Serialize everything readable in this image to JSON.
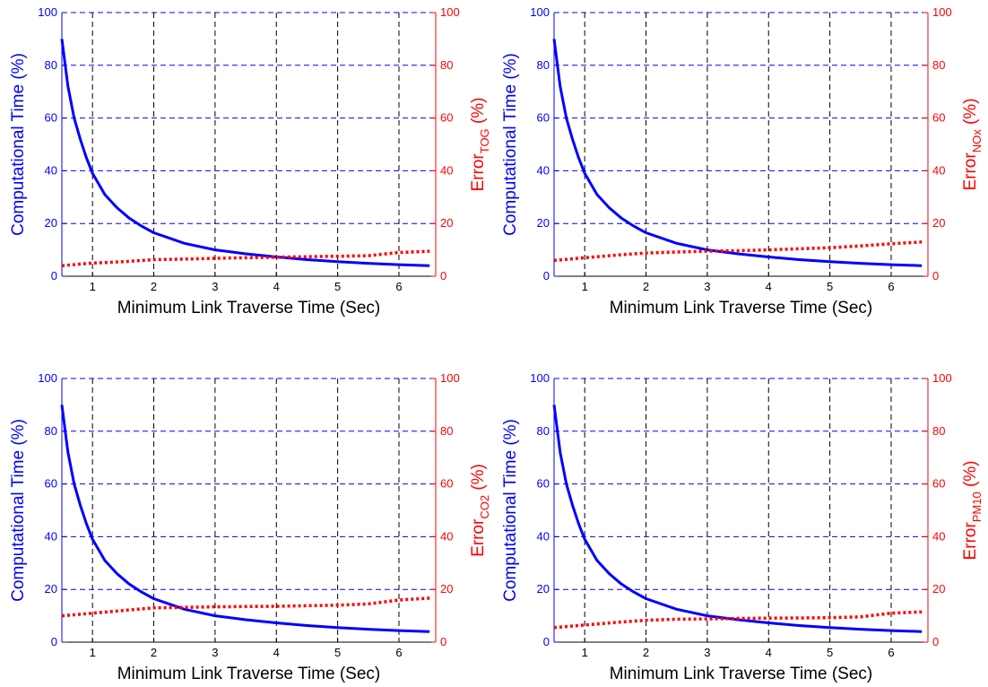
{
  "colors": {
    "left_series": "#0000ff",
    "right_series": "#ff0000",
    "vertical_grid": "#000000",
    "horizontal_grid": "#0000ff"
  },
  "chart_data": [
    {
      "type": "line",
      "xlabel": "Minimum Link Traverse Time (Sec)",
      "ylabel_left": "Computational Time (%)",
      "ylabel_right": {
        "main": "Error",
        "sub": "TOG",
        "suffix": " (%)"
      },
      "xlim": [
        0.5,
        6.6
      ],
      "ylim_left": [
        0,
        100
      ],
      "ylim_right": [
        0,
        100
      ],
      "xticks": [
        1,
        2,
        3,
        4,
        5,
        6
      ],
      "yticks": [
        0,
        20,
        40,
        60,
        80,
        100
      ],
      "grid": "dashed",
      "series": [
        {
          "axis": "left",
          "style": "solid",
          "x": [
            0.5,
            0.6,
            0.7,
            0.8,
            0.9,
            1.0,
            1.2,
            1.4,
            1.6,
            1.8,
            2.0,
            2.5,
            3.0,
            3.5,
            4.0,
            4.5,
            5.0,
            5.5,
            6.0,
            6.5
          ],
          "values": [
            90,
            72,
            60,
            52,
            45,
            39,
            31,
            26,
            22,
            19,
            16.5,
            12.5,
            10,
            8.5,
            7.3,
            6.3,
            5.5,
            4.9,
            4.4,
            4
          ]
        },
        {
          "axis": "right",
          "style": "dotted",
          "x": [
            0.5,
            1.0,
            1.5,
            2.0,
            2.5,
            3.0,
            3.5,
            4.0,
            4.5,
            5.0,
            5.5,
            6.0,
            6.5
          ],
          "values": [
            4,
            5,
            5.5,
            6.3,
            6.5,
            6.8,
            7,
            7.2,
            7.4,
            7.6,
            7.8,
            9,
            9.5
          ]
        }
      ]
    },
    {
      "type": "line",
      "xlabel": "Minimum Link Traverse Time (Sec)",
      "ylabel_left": "Computational Time (%)",
      "ylabel_right": {
        "main": "Error",
        "sub": "NOx",
        "suffix": " (%)"
      },
      "xlim": [
        0.5,
        6.6
      ],
      "ylim_left": [
        0,
        100
      ],
      "ylim_right": [
        0,
        100
      ],
      "xticks": [
        1,
        2,
        3,
        4,
        5,
        6
      ],
      "yticks": [
        0,
        20,
        40,
        60,
        80,
        100
      ],
      "grid": "dashed",
      "series": [
        {
          "axis": "left",
          "style": "solid",
          "x": [
            0.5,
            0.6,
            0.7,
            0.8,
            0.9,
            1.0,
            1.2,
            1.4,
            1.6,
            1.8,
            2.0,
            2.5,
            3.0,
            3.5,
            4.0,
            4.5,
            5.0,
            5.5,
            6.0,
            6.5
          ],
          "values": [
            90,
            72,
            60,
            52,
            45,
            39,
            31,
            26,
            22,
            19,
            16.5,
            12.5,
            10,
            8.5,
            7.3,
            6.3,
            5.5,
            4.9,
            4.4,
            4
          ]
        },
        {
          "axis": "right",
          "style": "dotted",
          "x": [
            0.5,
            1.0,
            1.5,
            2.0,
            2.5,
            3.0,
            3.5,
            4.0,
            4.5,
            5.0,
            5.5,
            6.0,
            6.5
          ],
          "values": [
            6,
            7,
            8,
            8.8,
            9.2,
            9.5,
            9.7,
            10,
            10.4,
            10.8,
            11.5,
            12.3,
            13
          ]
        }
      ]
    },
    {
      "type": "line",
      "xlabel": "Minimum Link Traverse Time (Sec)",
      "ylabel_left": "Computational Time (%)",
      "ylabel_right": {
        "main": "Error",
        "sub": "CO2",
        "suffix": " (%)"
      },
      "xlim": [
        0.5,
        6.6
      ],
      "ylim_left": [
        0,
        100
      ],
      "ylim_right": [
        0,
        100
      ],
      "xticks": [
        1,
        2,
        3,
        4,
        5,
        6
      ],
      "yticks": [
        0,
        20,
        40,
        60,
        80,
        100
      ],
      "grid": "dashed",
      "series": [
        {
          "axis": "left",
          "style": "solid",
          "x": [
            0.5,
            0.6,
            0.7,
            0.8,
            0.9,
            1.0,
            1.2,
            1.4,
            1.6,
            1.8,
            2.0,
            2.5,
            3.0,
            3.5,
            4.0,
            4.5,
            5.0,
            5.5,
            6.0,
            6.5
          ],
          "values": [
            90,
            72,
            60,
            52,
            45,
            39,
            31,
            26,
            22,
            19,
            16.5,
            12.5,
            10,
            8.5,
            7.3,
            6.3,
            5.5,
            4.9,
            4.4,
            4
          ]
        },
        {
          "axis": "right",
          "style": "dotted",
          "x": [
            0.5,
            1.0,
            1.5,
            2.0,
            2.5,
            3.0,
            3.5,
            4.0,
            4.5,
            5.0,
            5.5,
            6.0,
            6.5
          ],
          "values": [
            10,
            11,
            12,
            13,
            13.2,
            13.4,
            13.5,
            13.6,
            13.8,
            14,
            14.5,
            16,
            16.7
          ]
        }
      ]
    },
    {
      "type": "line",
      "xlabel": "Minimum Link Traverse Time (Sec)",
      "ylabel_left": "Computational Time (%)",
      "ylabel_right": {
        "main": "Error",
        "sub": "PM10",
        "suffix": " (%)"
      },
      "xlim": [
        0.5,
        6.6
      ],
      "ylim_left": [
        0,
        100
      ],
      "ylim_right": [
        0,
        100
      ],
      "xticks": [
        1,
        2,
        3,
        4,
        5,
        6
      ],
      "yticks": [
        0,
        20,
        40,
        60,
        80,
        100
      ],
      "grid": "dashed",
      "series": [
        {
          "axis": "left",
          "style": "solid",
          "x": [
            0.5,
            0.6,
            0.7,
            0.8,
            0.9,
            1.0,
            1.2,
            1.4,
            1.6,
            1.8,
            2.0,
            2.5,
            3.0,
            3.5,
            4.0,
            4.5,
            5.0,
            5.5,
            6.0,
            6.5
          ],
          "values": [
            90,
            72,
            60,
            52,
            45,
            39,
            31,
            26,
            22,
            19,
            16.5,
            12.5,
            10,
            8.5,
            7.3,
            6.3,
            5.5,
            4.9,
            4.4,
            4
          ]
        },
        {
          "axis": "right",
          "style": "dotted",
          "x": [
            0.5,
            1.0,
            1.5,
            2.0,
            2.5,
            3.0,
            3.5,
            4.0,
            4.5,
            5.0,
            5.5,
            6.0,
            6.5
          ],
          "values": [
            5.5,
            6.5,
            7.5,
            8.3,
            8.7,
            8.8,
            9,
            9.1,
            9.2,
            9.3,
            9.6,
            11,
            11.5
          ]
        }
      ]
    }
  ]
}
